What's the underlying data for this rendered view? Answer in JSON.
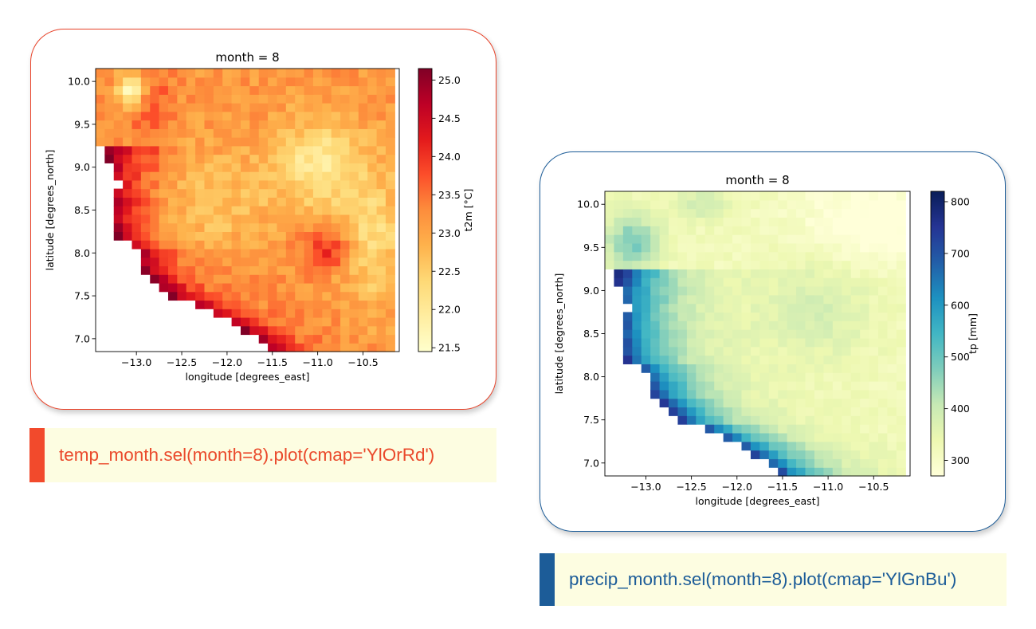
{
  "panels": [
    {
      "id": "temp",
      "card_border": "#e8432a",
      "caption": "temp_month.sel(month=8).plot(cmap='YlOrRd')",
      "caption_color": "#ea4a2c",
      "caption_bar_color": "#f24a2c",
      "chart_data": {
        "type": "heatmap",
        "title": "month = 8",
        "xlabel": "longitude [degrees_east]",
        "ylabel": "latitude [degrees_north]",
        "xlim": [
          -13.45,
          -10.1
        ],
        "ylim": [
          6.85,
          10.15
        ],
        "xticks": [
          -13.0,
          -12.5,
          -12.0,
          -11.5,
          -11.0,
          -10.5
        ],
        "xtick_labels": [
          "−13.0",
          "−12.5",
          "−12.0",
          "−11.5",
          "−11.0",
          "−10.5"
        ],
        "yticks": [
          7.0,
          7.5,
          8.0,
          8.5,
          9.0,
          9.5,
          10.0
        ],
        "ytick_labels": [
          "7.0",
          "7.5",
          "8.0",
          "8.5",
          "9.0",
          "9.5",
          "10.0"
        ],
        "grid": false,
        "colormap": "YlOrRd",
        "colorbar": {
          "label": "t2m [°C]",
          "min": 21.45,
          "max": 25.15,
          "ticks": [
            21.5,
            22.0,
            22.5,
            23.0,
            23.5,
            24.0,
            24.5,
            25.0
          ],
          "tick_labels": [
            "21.5",
            "22.0",
            "22.5",
            "23.0",
            "23.5",
            "24.0",
            "24.5",
            "25.0"
          ]
        },
        "value_range": [
          21.45,
          25.15
        ]
      }
    },
    {
      "id": "precip",
      "card_border": "#1c5c98",
      "caption": "precip_month.sel(month=8).plot(cmap='YlGnBu')",
      "caption_color": "#1c5c98",
      "caption_bar_color": "#1c5c98",
      "chart_data": {
        "type": "heatmap",
        "title": "month = 8",
        "xlabel": "longitude [degrees_east]",
        "ylabel": "latitude [degrees_north]",
        "xlim": [
          -13.45,
          -10.1
        ],
        "ylim": [
          6.85,
          10.15
        ],
        "xticks": [
          -13.0,
          -12.5,
          -12.0,
          -11.5,
          -11.0,
          -10.5
        ],
        "xtick_labels": [
          "−13.0",
          "−12.5",
          "−12.0",
          "−11.5",
          "−11.0",
          "−10.5"
        ],
        "yticks": [
          7.0,
          7.5,
          8.0,
          8.5,
          9.0,
          9.5,
          10.0
        ],
        "ytick_labels": [
          "7.0",
          "7.5",
          "8.0",
          "8.5",
          "9.0",
          "9.5",
          "10.0"
        ],
        "grid": false,
        "colormap": "YlGnBu",
        "colorbar": {
          "label": "tp [mm]",
          "min": 270,
          "max": 820,
          "ticks": [
            300,
            400,
            500,
            600,
            700,
            800
          ],
          "tick_labels": [
            "300",
            "400",
            "500",
            "600",
            "700",
            "800"
          ]
        },
        "value_range": [
          270,
          820
        ]
      }
    }
  ]
}
